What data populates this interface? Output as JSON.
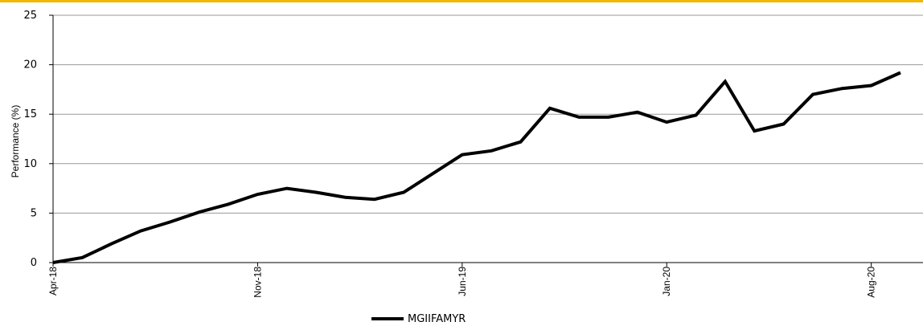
{
  "colors": {
    "accent_bar": "#f2b705",
    "gridline": "#999999",
    "series_line": "#000000"
  },
  "chart_data": {
    "type": "line",
    "title": "",
    "xlabel": "",
    "ylabel": "Performance (%)",
    "ylim": [
      0,
      25
    ],
    "yticks": [
      0,
      5,
      10,
      15,
      20,
      25
    ],
    "grid": true,
    "legend": "bottom-center",
    "x": [
      "Apr-18",
      "May-18",
      "Jun-18",
      "Jul-18",
      "Aug-18",
      "Sep-18",
      "Oct-18",
      "Nov-18",
      "Dec-18",
      "Jan-19",
      "Feb-19",
      "Mar-19",
      "Apr-19",
      "May-19",
      "Jun-19",
      "Jul-19",
      "Aug-19",
      "Sep-19",
      "Oct-19",
      "Nov-19",
      "Dec-19",
      "Jan-20",
      "Feb-20",
      "Mar-20",
      "Apr-20",
      "May-20",
      "Jun-20",
      "Jul-20",
      "Aug-20",
      "Sep-20"
    ],
    "xtick_labels": [
      "Apr-18",
      "Nov-18",
      "Jun-19",
      "Jan-20",
      "Aug-20"
    ],
    "series": [
      {
        "name": "MGIIFAMYR",
        "values": [
          0.0,
          0.5,
          1.9,
          3.2,
          4.1,
          5.1,
          5.9,
          6.9,
          7.5,
          7.1,
          6.6,
          6.4,
          7.1,
          9.0,
          10.9,
          11.3,
          12.2,
          15.6,
          14.7,
          14.7,
          15.2,
          14.2,
          14.9,
          18.3,
          13.3,
          14.0,
          17.0,
          17.6,
          17.9,
          19.2
        ]
      }
    ]
  }
}
